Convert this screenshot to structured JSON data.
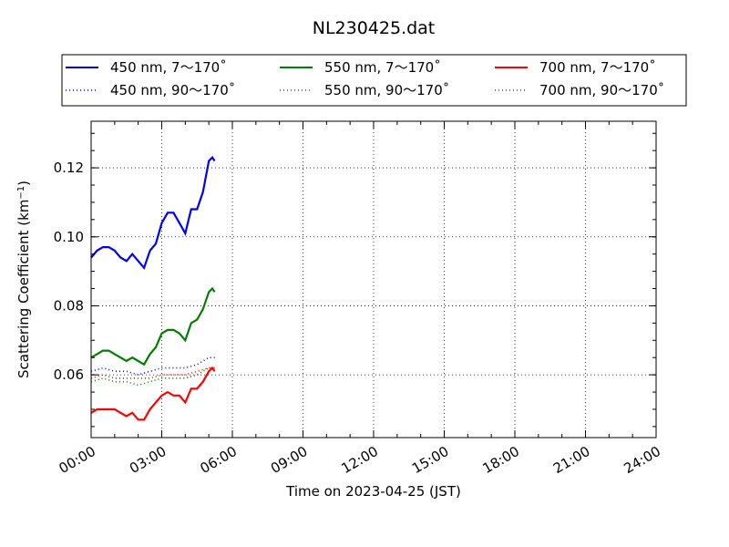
{
  "chart_data": {
    "type": "line",
    "title": "NL230425.dat",
    "xlabel": "Time on 2023-04-25 (JST)",
    "ylabel_prefix": "Scattering Coefficient (km",
    "ylabel_exp": "−1",
    "ylabel_suffix": ")",
    "x_unit": "hours",
    "xlim": [
      0,
      24
    ],
    "ylim": [
      0.0418,
      0.1335
    ],
    "x_ticks": [
      0,
      3,
      6,
      9,
      12,
      15,
      18,
      21,
      24
    ],
    "x_tick_labels": [
      "00:00",
      "03:00",
      "06:00",
      "09:00",
      "12:00",
      "15:00",
      "18:00",
      "21:00",
      "24:00"
    ],
    "y_ticks": [
      0.06,
      0.08,
      0.1,
      0.12
    ],
    "y_tick_labels": [
      "0.06",
      "0.08",
      "0.10",
      "0.12"
    ],
    "y_minor_step": 0.005,
    "x_minor_step": 1,
    "grid": true,
    "legend_position": "top, above plot area",
    "series": [
      {
        "name": "450 nm, 7～170˚",
        "color": "#0000ff",
        "style": "solid",
        "x": [
          0,
          0.25,
          0.5,
          0.75,
          1.0,
          1.25,
          1.5,
          1.75,
          2.0,
          2.25,
          2.5,
          2.75,
          3.0,
          3.25,
          3.5,
          3.75,
          4.0,
          4.25,
          4.5,
          4.75,
          5.0,
          5.15,
          5.25
        ],
        "y": [
          0.094,
          0.096,
          0.097,
          0.097,
          0.096,
          0.094,
          0.093,
          0.095,
          0.093,
          0.091,
          0.096,
          0.098,
          0.104,
          0.107,
          0.107,
          0.104,
          0.101,
          0.108,
          0.108,
          0.113,
          0.122,
          0.123,
          0.122
        ]
      },
      {
        "name": "550 nm, 7～170˚",
        "color": "#008000",
        "style": "solid",
        "x": [
          0,
          0.25,
          0.5,
          0.75,
          1.0,
          1.25,
          1.5,
          1.75,
          2.0,
          2.25,
          2.5,
          2.75,
          3.0,
          3.25,
          3.5,
          3.75,
          4.0,
          4.25,
          4.5,
          4.75,
          5.0,
          5.15,
          5.25
        ],
        "y": [
          0.065,
          0.066,
          0.067,
          0.067,
          0.066,
          0.065,
          0.064,
          0.065,
          0.064,
          0.063,
          0.066,
          0.068,
          0.072,
          0.073,
          0.073,
          0.072,
          0.07,
          0.075,
          0.076,
          0.079,
          0.084,
          0.085,
          0.084
        ]
      },
      {
        "name": "700 nm, 7～170˚",
        "color": "#ff0000",
        "style": "solid",
        "x": [
          0,
          0.25,
          0.5,
          0.75,
          1.0,
          1.25,
          1.5,
          1.75,
          2.0,
          2.25,
          2.5,
          2.75,
          3.0,
          3.25,
          3.5,
          3.75,
          4.0,
          4.25,
          4.5,
          4.75,
          5.0,
          5.15,
          5.25
        ],
        "y": [
          0.049,
          0.05,
          0.05,
          0.05,
          0.05,
          0.049,
          0.048,
          0.049,
          0.047,
          0.047,
          0.05,
          0.052,
          0.054,
          0.055,
          0.054,
          0.054,
          0.052,
          0.056,
          0.056,
          0.058,
          0.061,
          0.062,
          0.061
        ]
      },
      {
        "name": "450 nm, 90～170˚",
        "color": "#0000ff",
        "style": "dotted",
        "x": [
          0,
          0.5,
          1.0,
          1.5,
          2.0,
          2.5,
          3.0,
          3.5,
          4.0,
          4.5,
          5.0,
          5.25
        ],
        "y": [
          0.061,
          0.062,
          0.061,
          0.061,
          0.06,
          0.061,
          0.062,
          0.062,
          0.062,
          0.063,
          0.065,
          0.065
        ]
      },
      {
        "name": "550 nm, 90～170˚",
        "color": "#008000",
        "style": "dotted",
        "x": [
          0,
          0.5,
          1.0,
          1.5,
          2.0,
          2.5,
          3.0,
          3.5,
          4.0,
          4.5,
          5.0,
          5.25
        ],
        "y": [
          0.058,
          0.059,
          0.058,
          0.058,
          0.057,
          0.058,
          0.059,
          0.059,
          0.059,
          0.06,
          0.062,
          0.062
        ]
      },
      {
        "name": "700 nm, 90～170˚",
        "color": "#ff0000",
        "style": "dotted",
        "x": [
          0,
          0.5,
          1.0,
          1.5,
          2.0,
          2.5,
          3.0,
          3.5,
          4.0,
          4.5,
          5.0,
          5.25
        ],
        "y": [
          0.059,
          0.06,
          0.059,
          0.059,
          0.059,
          0.059,
          0.06,
          0.06,
          0.06,
          0.061,
          0.062,
          0.062
        ]
      }
    ],
    "legend_order": [
      0,
      3,
      1,
      4,
      2,
      5
    ]
  }
}
